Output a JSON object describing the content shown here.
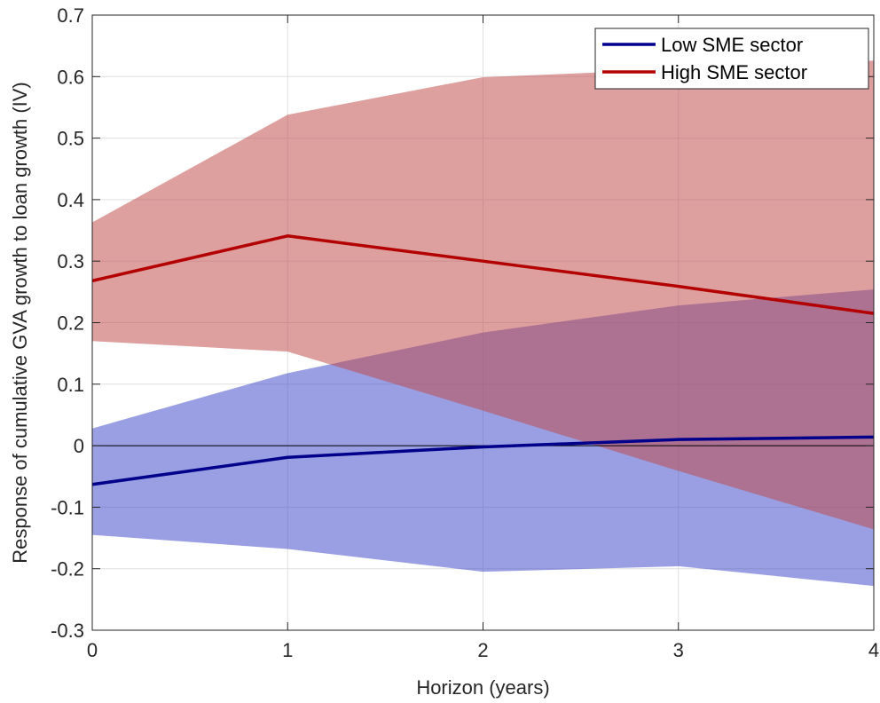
{
  "chart_data": {
    "type": "line",
    "xlabel": "Horizon (years)",
    "ylabel": "Response of cumulative GVA growth to loan growth (IV)",
    "xlim": [
      0,
      4
    ],
    "ylim": [
      -0.3,
      0.7
    ],
    "xticks": [
      0,
      1,
      2,
      3,
      4
    ],
    "yticks": [
      -0.3,
      -0.2,
      -0.1,
      0,
      0.1,
      0.2,
      0.3,
      0.4,
      0.5,
      0.6,
      0.7
    ],
    "grid": true,
    "zero_line": true,
    "legend_position": "top-right",
    "x": [
      0,
      1,
      2,
      3,
      4
    ],
    "series": [
      {
        "name": "Low SME sector",
        "color": "#00008b",
        "band_color": "#3c46c8",
        "values": [
          -0.063,
          -0.019,
          -0.002,
          0.01,
          0.014
        ],
        "lower": [
          -0.145,
          -0.168,
          -0.205,
          -0.196,
          -0.228
        ],
        "upper": [
          0.028,
          0.118,
          0.184,
          0.228,
          0.254
        ]
      },
      {
        "name": "High SME sector",
        "color": "#b30000",
        "band_color": "#c04646",
        "values": [
          0.268,
          0.341,
          0.3,
          0.259,
          0.215
        ],
        "lower": [
          0.17,
          0.153,
          0.057,
          -0.041,
          -0.136
        ],
        "upper": [
          0.363,
          0.538,
          0.599,
          0.612,
          0.626
        ]
      }
    ]
  }
}
